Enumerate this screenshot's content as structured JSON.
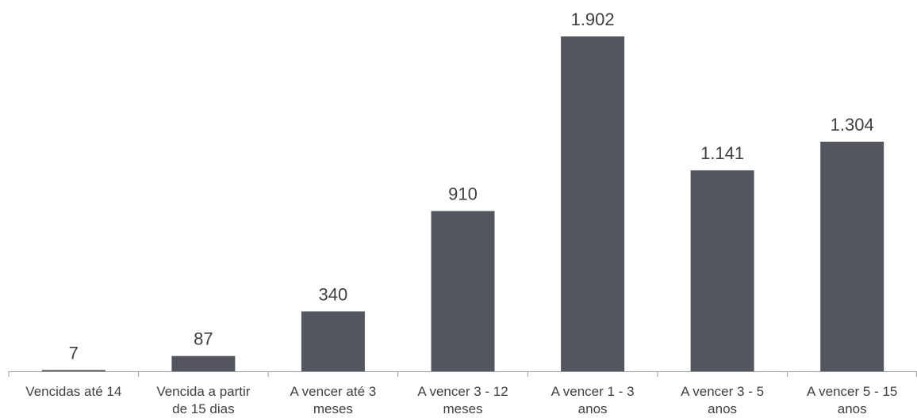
{
  "chart_data": {
    "type": "bar",
    "categories": [
      [
        "Vencidas até 14"
      ],
      [
        "Vencida a partir",
        "de 15 dias"
      ],
      [
        "A vencer até 3",
        "meses"
      ],
      [
        "A vencer 3 - 12",
        "meses"
      ],
      [
        "A vencer 1 -  3",
        "anos"
      ],
      [
        "A vencer 3 -  5",
        "anos"
      ],
      [
        "A vencer 5 -  15",
        "anos"
      ]
    ],
    "values": [
      7,
      87,
      340,
      910,
      1902,
      1141,
      1304
    ],
    "value_labels": [
      "7",
      "87",
      "340",
      "910",
      "1.902",
      "1.141",
      "1.304"
    ],
    "ylim": [
      0,
      1902
    ],
    "grid": false,
    "colors": {
      "bar": "#53565f",
      "text": "#404040",
      "axis": "#9a9a9a"
    }
  }
}
